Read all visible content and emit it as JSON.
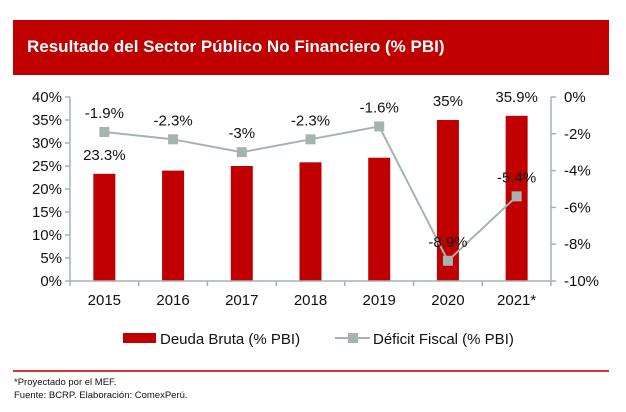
{
  "header": {
    "title": "Resultado del Sector Público No Financiero (% PBI)"
  },
  "colors": {
    "banner": "#c00000",
    "bar": "#c00000",
    "line": "#a5b3b1",
    "axis": "#a5b3b1",
    "divider": "#e0303a"
  },
  "chart_data": {
    "type": "bar+line",
    "title": "Resultado del Sector Público No Financiero (% PBI)",
    "categories": [
      "2015",
      "2016",
      "2017",
      "2018",
      "2019",
      "2020",
      "2021*"
    ],
    "series": [
      {
        "name": "Deuda Bruta (% PBI)",
        "type": "bar",
        "axis": "left",
        "values": [
          23.3,
          24.0,
          25.0,
          25.8,
          26.8,
          35.0,
          35.9
        ],
        "labels": [
          "23.3%",
          "",
          "",
          "",
          "",
          "35%",
          "35.9%"
        ]
      },
      {
        "name": "Déficit Fiscal (% PBI)",
        "type": "line",
        "axis": "right",
        "values": [
          -1.9,
          -2.3,
          -3.0,
          -2.3,
          -1.6,
          -8.9,
          -5.4
        ],
        "labels": [
          "-1.9%",
          "-2.3%",
          "-3%",
          "-2.3%",
          "-1.6%",
          "-8.9%",
          "-5.4%"
        ]
      }
    ],
    "left_axis": {
      "ylim": [
        0,
        40
      ],
      "ticks": [
        "0%",
        "5%",
        "10%",
        "15%",
        "20%",
        "25%",
        "30%",
        "35%",
        "40%"
      ],
      "tick_values": [
        0,
        5,
        10,
        15,
        20,
        25,
        30,
        35,
        40
      ]
    },
    "right_axis": {
      "ylim": [
        -10,
        0
      ],
      "ticks": [
        "-10%",
        "-8%",
        "-6%",
        "-4%",
        "-2%",
        "0%"
      ],
      "tick_values": [
        -10,
        -8,
        -6,
        -4,
        -2,
        0
      ]
    },
    "legend": {
      "position": "bottom",
      "entries": [
        "Deuda Bruta (% PBI)",
        "Déficit Fiscal (% PBI)"
      ]
    },
    "grid": false
  },
  "footer": {
    "note": "*Proyectado por el MEF.",
    "source": "Fuente: BCRP. Elaboración: ComexPerú."
  }
}
